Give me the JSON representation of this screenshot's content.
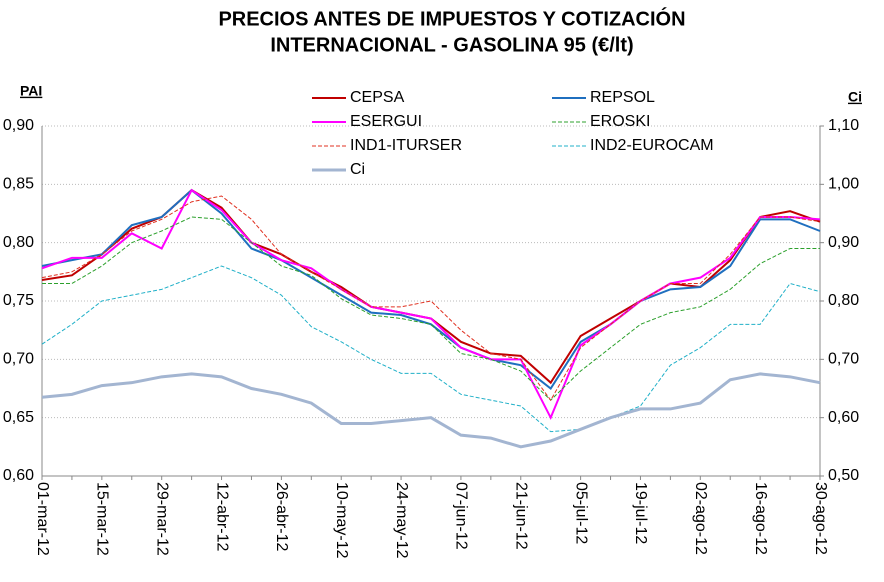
{
  "chart_data": {
    "type": "line",
    "title": [
      "PRECIOS ANTES DE IMPUESTOS Y COTIZACIÓN",
      "INTERNACIONAL  -  GASOLINA 95  (€/lt)"
    ],
    "y_label": "PAI",
    "y2_label": "Ci",
    "categories": [
      "01-mar-12",
      null,
      "15-mar-12",
      null,
      "29-mar-12",
      null,
      "12-abr-12",
      null,
      "26-abr-12",
      null,
      "10-may-12",
      null,
      "24-may-12",
      null,
      "07-jun-12",
      null,
      "21-jun-12",
      null,
      "05-jul-12",
      null,
      "19-jul-12",
      null,
      "02-ago-12",
      null,
      "16-ago-12",
      null,
      "30-ago-12"
    ],
    "ylim": [
      0.6,
      0.9
    ],
    "yticks": [
      {
        "value": 0.6,
        "label": "0,60"
      },
      {
        "value": 0.65,
        "label": "0,65"
      },
      {
        "value": 0.7,
        "label": "0,70"
      },
      {
        "value": 0.75,
        "label": "0,75"
      },
      {
        "value": 0.8,
        "label": "0,80"
      },
      {
        "value": 0.85,
        "label": "0,85"
      },
      {
        "value": 0.9,
        "label": "0,90"
      }
    ],
    "y2lim": [
      0.5,
      1.1
    ],
    "y2ticks": [
      {
        "value": 0.5,
        "label": "0,50"
      },
      {
        "value": 0.6,
        "label": "0,60"
      },
      {
        "value": 0.7,
        "label": "0,70"
      },
      {
        "value": 0.8,
        "label": "0,80"
      },
      {
        "value": 0.9,
        "label": "0,90"
      },
      {
        "value": 1.0,
        "label": "1,00"
      },
      {
        "value": 1.1,
        "label": "1,10"
      }
    ],
    "grid": true,
    "legend": "top",
    "series": [
      {
        "name": "CEPSA",
        "color": "#c00000",
        "style": "solid",
        "values": [
          0.768,
          0.772,
          0.79,
          0.812,
          0.822,
          0.845,
          0.83,
          0.8,
          0.79,
          0.775,
          0.762,
          0.745,
          0.74,
          0.735,
          0.715,
          0.705,
          0.703,
          0.68,
          0.72,
          0.735,
          0.75,
          0.765,
          0.762,
          0.785,
          0.822,
          0.827,
          0.818
        ]
      },
      {
        "name": "REPSOL",
        "color": "#1f6fbf",
        "style": "solid",
        "values": [
          0.78,
          0.785,
          0.79,
          0.815,
          0.822,
          0.845,
          0.825,
          0.795,
          0.785,
          0.77,
          0.755,
          0.74,
          0.738,
          0.73,
          0.71,
          0.7,
          0.695,
          0.675,
          0.715,
          0.73,
          0.75,
          0.76,
          0.762,
          0.78,
          0.82,
          0.82,
          0.81
        ]
      },
      {
        "name": "ESERGUI",
        "color": "#ff00ff",
        "style": "solid",
        "values": [
          0.778,
          0.787,
          0.787,
          0.808,
          0.795,
          0.845,
          0.828,
          0.8,
          0.785,
          0.778,
          0.76,
          0.745,
          0.74,
          0.735,
          0.71,
          0.7,
          0.7,
          0.65,
          0.712,
          0.73,
          0.75,
          0.765,
          0.77,
          0.787,
          0.822,
          0.822,
          0.82
        ]
      },
      {
        "name": "EROSKI",
        "color": "#2ca02c",
        "style": "dashed",
        "values": [
          0.765,
          0.765,
          0.78,
          0.8,
          0.81,
          0.822,
          0.82,
          0.8,
          0.78,
          0.772,
          0.752,
          0.738,
          0.735,
          0.73,
          0.705,
          0.7,
          0.69,
          0.665,
          0.69,
          0.71,
          0.73,
          0.74,
          0.745,
          0.76,
          0.782,
          0.795,
          0.795
        ]
      },
      {
        "name": "IND1-ITURSER",
        "color": "#e03020",
        "style": "dashed",
        "values": [
          0.77,
          0.775,
          0.79,
          0.81,
          0.82,
          0.835,
          0.84,
          0.82,
          0.79,
          0.775,
          0.76,
          0.745,
          0.745,
          0.75,
          0.725,
          0.705,
          0.7,
          0.665,
          0.71,
          0.73,
          0.75,
          0.765,
          0.765,
          0.79,
          0.822,
          0.822,
          0.818
        ]
      },
      {
        "name": "IND2-EUROCAM",
        "color": "#20b0c8",
        "style": "dashed",
        "values": [
          0.713,
          0.73,
          0.75,
          0.755,
          0.76,
          0.77,
          0.78,
          0.77,
          0.755,
          0.728,
          0.715,
          0.7,
          0.688,
          0.688,
          0.67,
          0.665,
          0.66,
          0.638,
          0.64,
          0.65,
          0.66,
          0.695,
          0.71,
          0.73,
          0.73,
          0.765,
          0.758
        ]
      },
      {
        "name": "Ci",
        "color": "#a3b5d1",
        "style": "thick",
        "axis": "y2",
        "values": [
          0.635,
          0.64,
          0.655,
          0.66,
          0.67,
          0.675,
          0.67,
          0.65,
          0.64,
          0.625,
          0.59,
          0.59,
          0.595,
          0.6,
          0.57,
          0.565,
          0.55,
          0.56,
          0.58,
          0.6,
          0.615,
          0.615,
          0.625,
          0.665,
          0.675,
          0.67,
          0.66
        ]
      }
    ]
  }
}
